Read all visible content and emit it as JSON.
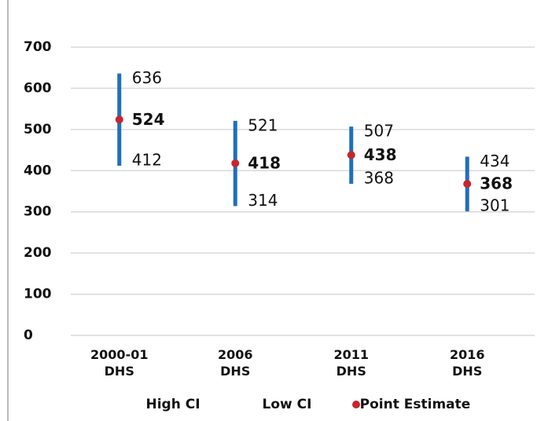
{
  "chart_data": {
    "type": "range",
    "categories": [
      "2000-01 DHS",
      "2006 DHS",
      "2011 DHS",
      "2016 DHS"
    ],
    "series": [
      {
        "name": "High CI",
        "color": "#1f6fbf",
        "values": [
          636,
          521,
          507,
          434
        ]
      },
      {
        "name": "Low CI",
        "color": "#1f6fbf",
        "values": [
          412,
          314,
          368,
          301
        ]
      },
      {
        "name": "Point Estimate",
        "color": "#c8252d",
        "values": [
          524,
          418,
          438,
          368
        ]
      }
    ],
    "ylim": [
      0,
      700
    ],
    "yticks": [
      0,
      100,
      200,
      300,
      400,
      500,
      600,
      700
    ],
    "grid": true,
    "legend": "bottom"
  }
}
